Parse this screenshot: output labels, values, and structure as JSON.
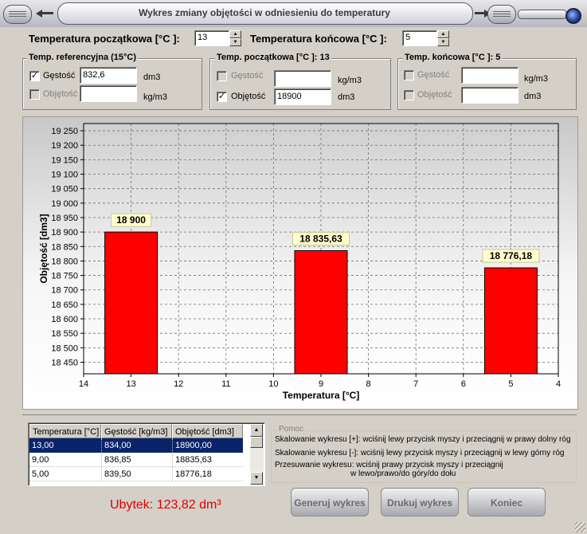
{
  "window": {
    "title": "Wykres zmiany objętości w odniesieniu do temperatury"
  },
  "top": {
    "start_temp_label": "Temperatura początkowa [°C ]:",
    "start_temp_value": "13",
    "end_temp_label": "Temperatura końcowa [°C ]:",
    "end_temp_value": "5"
  },
  "groups": {
    "ref": {
      "title": "Temp. referencyjna (15°C)",
      "density_label": "Gęstość",
      "density_checked": "✓",
      "density_value": "832,6",
      "density_unit": "dm3",
      "volume_label": "Objętość",
      "volume_value": "",
      "volume_unit": "kg/m3"
    },
    "start": {
      "title": "Temp. początkowa [°C ]: 13",
      "density_label": "Gęstość",
      "density_value": "",
      "density_unit": "kg/m3",
      "volume_label": "Objętość",
      "volume_checked": "✓",
      "volume_value": "18900",
      "volume_unit": "dm3"
    },
    "end": {
      "title": "Temp. końcowa [°C ]: 5",
      "density_label": "Gęstość",
      "density_value": "",
      "density_unit": "kg/m3",
      "volume_label": "Objętość",
      "volume_value": "",
      "volume_unit": "dm3"
    }
  },
  "chart_data": {
    "type": "bar",
    "xlabel": "Temperatura [°C]",
    "ylabel": "Objętość [dm3]",
    "x_ticks": [
      "14",
      "13",
      "12",
      "11",
      "10",
      "9",
      "8",
      "7",
      "6",
      "5",
      "4"
    ],
    "x_range": [
      14,
      4
    ],
    "y_ticks": [
      "18 450",
      "18 500",
      "18 550",
      "18 600",
      "18 650",
      "18 700",
      "18 750",
      "18 800",
      "18 850",
      "18 900",
      "18 950",
      "19 000",
      "19 050",
      "19 100",
      "19 150",
      "19 200",
      "19 250"
    ],
    "ylim": [
      18410,
      19275
    ],
    "grid": true,
    "bars": [
      {
        "x": 13,
        "value": 18900.0,
        "label": "18 900"
      },
      {
        "x": 9,
        "value": 18835.63,
        "label": "18 835,63"
      },
      {
        "x": 5,
        "value": 18776.18,
        "label": "18 776,18"
      }
    ],
    "bar_color": "#ff0000"
  },
  "table": {
    "headers": [
      "Temperatura [°C]",
      "Gęstość [kg/m3]",
      "Objętość [dm3]"
    ],
    "rows": [
      [
        "13,00",
        "834,00",
        "18900,00"
      ],
      [
        "9,00",
        "836,85",
        "18835,63"
      ],
      [
        "5,00",
        "839,50",
        "18776,18"
      ]
    ]
  },
  "loss_text": "Ubytek: 123,82 dm³",
  "help": {
    "title": "Pomoc",
    "line1": "Skalowanie wykresu [+]: wciśnij lewy przycisk myszy i przeciągnij w prawy dolny róg",
    "line2": "Skalowanie wykresu [-]: wciśnij lewy przycisk myszy i przeciągnij w lewy górny róg",
    "line3": "Przesuwanie wykresu: wciśnij prawy przycisk myszy i przeciągnij",
    "line4": "w lewo/prawo/do góry/do dołu"
  },
  "buttons": {
    "generate": "Generuj wykres",
    "print": "Drukuj wykres",
    "close": "Koniec"
  },
  "colors": {
    "accent_red": "#ff0000",
    "selection": "#0a246a",
    "loss_text": "#e00000"
  }
}
